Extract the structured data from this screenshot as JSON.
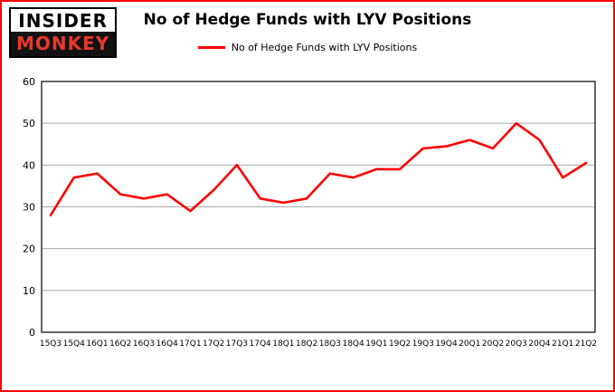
{
  "brand": {
    "line1": "INSIDER",
    "line2": "MONKEY"
  },
  "title": "No of Hedge Funds with LYV Positions",
  "legend": {
    "label": "No of Hedge Funds with LYV Positions",
    "color": "#ff0000"
  },
  "chart_data": {
    "type": "line",
    "title": "No of Hedge Funds with LYV Positions",
    "categories": [
      "15Q3",
      "15Q4",
      "16Q1",
      "16Q2",
      "16Q3",
      "16Q4",
      "17Q1",
      "17Q2",
      "17Q3",
      "17Q4",
      "18Q1",
      "18Q2",
      "18Q3",
      "18Q4",
      "19Q1",
      "19Q2",
      "19Q3",
      "19Q4",
      "20Q1",
      "20Q2",
      "20Q3",
      "20Q4",
      "21Q1",
      "21Q2"
    ],
    "values": [
      28,
      37,
      38,
      33,
      32,
      33,
      29,
      34,
      40,
      32,
      31,
      32,
      38,
      37,
      39,
      39,
      44,
      44.5,
      46,
      44,
      50,
      46,
      37,
      40.5
    ],
    "xlabel": "",
    "ylabel": "",
    "ylim": [
      0,
      60
    ],
    "yticks": [
      0,
      10,
      20,
      30,
      40,
      50,
      60
    ],
    "line_color": "#ff0000",
    "grid_color": "#aaaaaa",
    "axis_color": "#000000",
    "grid": true,
    "legend_position": "top"
  }
}
